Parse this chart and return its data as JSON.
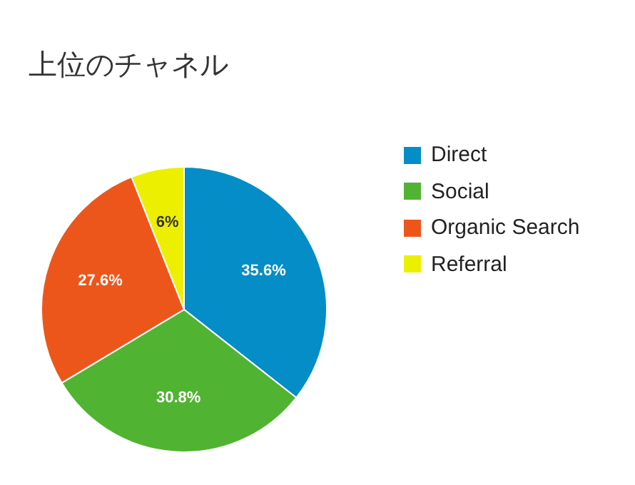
{
  "chart_data": {
    "type": "pie",
    "title": "上位のチャネル",
    "categories": [
      "Direct",
      "Social",
      "Organic Search",
      "Referral"
    ],
    "values": [
      35.6,
      30.8,
      27.6,
      6
    ],
    "colors": [
      "#058dc7",
      "#50b432",
      "#ed561b",
      "#edef00"
    ],
    "value_labels": [
      "35.6%",
      "30.8%",
      "27.6%",
      "6%"
    ],
    "legend": "right"
  }
}
